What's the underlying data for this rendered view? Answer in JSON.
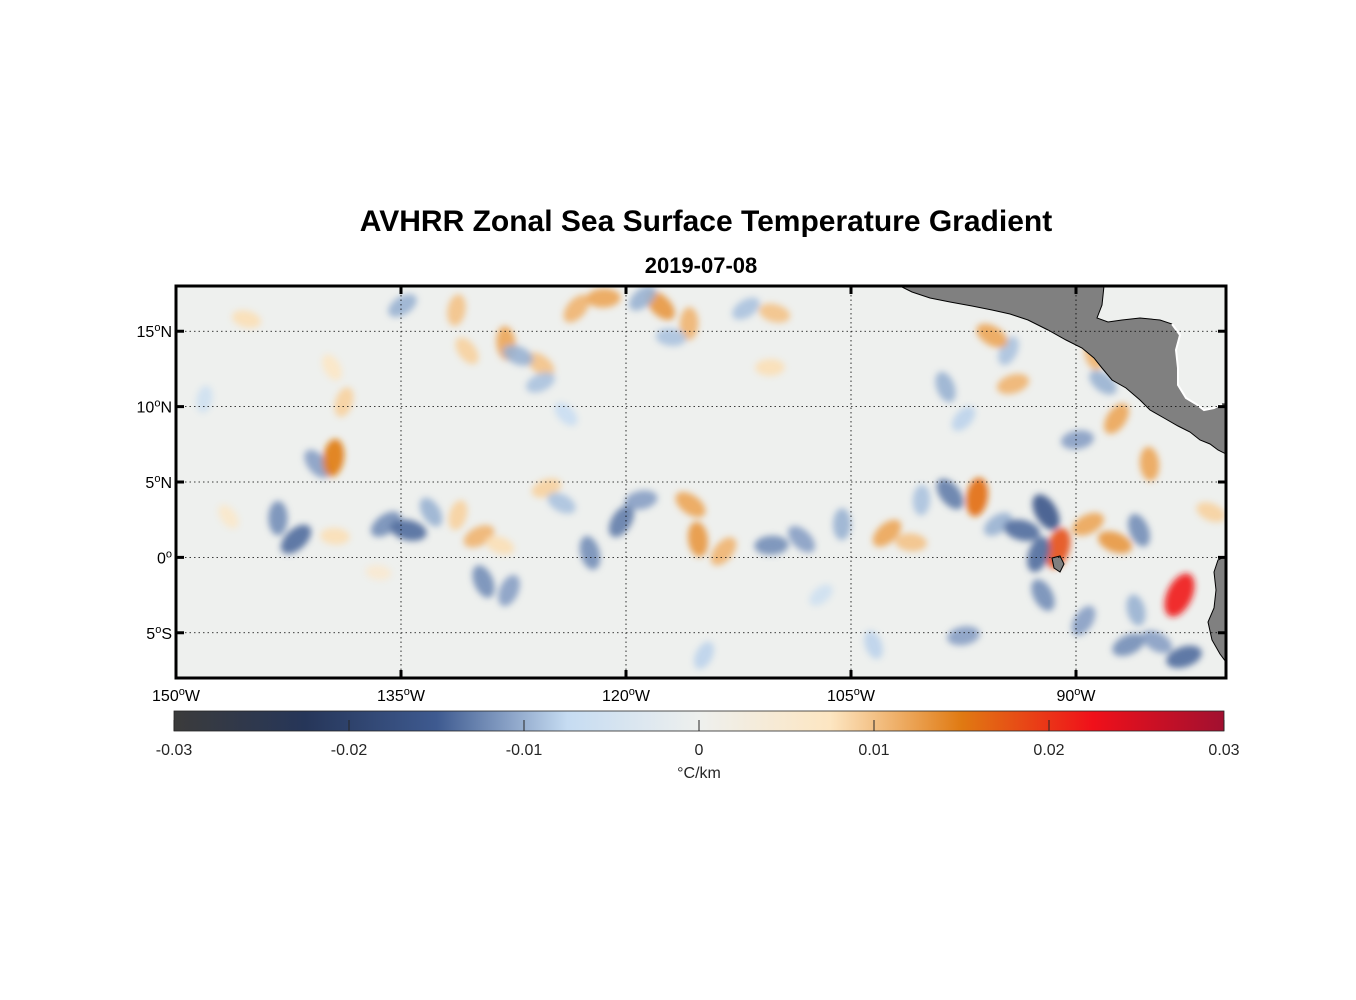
{
  "title": "AVHRR Zonal Sea Surface Temperature Gradient",
  "subtitle": "2019-07-08",
  "map": {
    "lon_range": [
      -150,
      -80
    ],
    "lat_range": [
      -8,
      18
    ],
    "lat_ticks": [
      {
        "value": 15,
        "label": "15",
        "hemi": "N"
      },
      {
        "value": 10,
        "label": "10",
        "hemi": "N"
      },
      {
        "value": 5,
        "label": "5",
        "hemi": "N"
      },
      {
        "value": 0,
        "label": "0",
        "hemi": ""
      },
      {
        "value": -5,
        "label": "5",
        "hemi": "S"
      }
    ],
    "lon_ticks": [
      {
        "value": -150,
        "label": "150",
        "hemi": "W"
      },
      {
        "value": -135,
        "label": "135",
        "hemi": "W"
      },
      {
        "value": -120,
        "label": "120",
        "hemi": "W"
      },
      {
        "value": -105,
        "label": "105",
        "hemi": "W"
      },
      {
        "value": -90,
        "label": "90",
        "hemi": "W"
      }
    ],
    "land_color": "#808080"
  },
  "colorbar": {
    "min": -0.03,
    "max": 0.03,
    "ticks": [
      "-0.03",
      "-0.02",
      "-0.01",
      "0",
      "0.01",
      "0.02",
      "0.03"
    ],
    "tick_values": [
      -0.03,
      -0.02,
      -0.01,
      0,
      0.01,
      0.02,
      0.03
    ],
    "unit_label": "°C/km",
    "colors": [
      "#3b3b3b",
      "#263659",
      "#3e5a90",
      "#c6dcf2",
      "#eef0ee",
      "#fde6c2",
      "#e07a12",
      "#f0101a",
      "#a11030"
    ]
  },
  "features": [
    {
      "lon": -143.2,
      "lat": 2.6,
      "v": -0.012
    },
    {
      "lon": -142,
      "lat": 1.2,
      "v": -0.014
    },
    {
      "lon": -139.4,
      "lat": 1.4,
      "v": 0.008
    },
    {
      "lon": -140.6,
      "lat": 6.2,
      "v": -0.011
    },
    {
      "lon": -139.5,
      "lat": 6.6,
      "v": 0.015
    },
    {
      "lon": -136,
      "lat": 2.2,
      "v": -0.012
    },
    {
      "lon": -134.5,
      "lat": 1.8,
      "v": -0.014
    },
    {
      "lon": -133,
      "lat": 3,
      "v": -0.01
    },
    {
      "lon": -131.2,
      "lat": 2.8,
      "v": 0.009
    },
    {
      "lon": -129.8,
      "lat": 1.4,
      "v": 0.011
    },
    {
      "lon": -128.4,
      "lat": 0.8,
      "v": 0.008
    },
    {
      "lon": -129.5,
      "lat": -1.6,
      "v": -0.012
    },
    {
      "lon": -127.8,
      "lat": -2.2,
      "v": -0.011
    },
    {
      "lon": -125.3,
      "lat": 4.6,
      "v": 0.009
    },
    {
      "lon": -124.3,
      "lat": 3.6,
      "v": -0.009
    },
    {
      "lon": -122.4,
      "lat": 0.3,
      "v": -0.012
    },
    {
      "lon": -120.3,
      "lat": 2.4,
      "v": -0.013
    },
    {
      "lon": -119,
      "lat": 3.8,
      "v": -0.011
    },
    {
      "lon": -115.7,
      "lat": 3.5,
      "v": 0.012
    },
    {
      "lon": -115.2,
      "lat": 1.2,
      "v": 0.013
    },
    {
      "lon": -113.5,
      "lat": 0.4,
      "v": 0.011
    },
    {
      "lon": -110.3,
      "lat": 0.8,
      "v": -0.012
    },
    {
      "lon": -108.3,
      "lat": 1.2,
      "v": -0.011
    },
    {
      "lon": -105.6,
      "lat": 2.2,
      "v": -0.01
    },
    {
      "lon": -102.6,
      "lat": 1.6,
      "v": 0.012
    },
    {
      "lon": -101,
      "lat": 1,
      "v": 0.01
    },
    {
      "lon": -98.4,
      "lat": 4.2,
      "v": -0.013
    },
    {
      "lon": -96.6,
      "lat": 4,
      "v": 0.016
    },
    {
      "lon": -95.2,
      "lat": 2.2,
      "v": -0.01
    },
    {
      "lon": -93.6,
      "lat": 1.8,
      "v": -0.014
    },
    {
      "lon": -92,
      "lat": 3,
      "v": -0.016
    },
    {
      "lon": -91.2,
      "lat": 0.6,
      "v": 0.018
    },
    {
      "lon": -89.2,
      "lat": 2.2,
      "v": 0.012
    },
    {
      "lon": -87.4,
      "lat": 1,
      "v": 0.013
    },
    {
      "lon": -85.8,
      "lat": 1.8,
      "v": -0.012
    },
    {
      "lon": -83.1,
      "lat": -2.5,
      "v": 0.022
    },
    {
      "lon": -82.8,
      "lat": -6.6,
      "v": -0.014
    },
    {
      "lon": -84.6,
      "lat": -5.6,
      "v": -0.011
    },
    {
      "lon": -86,
      "lat": -3.5,
      "v": -0.01
    },
    {
      "lon": -89.5,
      "lat": -4.2,
      "v": -0.011
    },
    {
      "lon": -97.5,
      "lat": -5.2,
      "v": -0.011
    },
    {
      "lon": -125.7,
      "lat": 12.8,
      "v": 0.01
    },
    {
      "lon": -128,
      "lat": 14.2,
      "v": 0.012
    },
    {
      "lon": -123.3,
      "lat": 16.5,
      "v": 0.011
    },
    {
      "lon": -121.5,
      "lat": 17.2,
      "v": 0.012
    },
    {
      "lon": -117.7,
      "lat": 16.7,
      "v": 0.013
    },
    {
      "lon": -115.8,
      "lat": 15.5,
      "v": 0.011
    },
    {
      "lon": -118.9,
      "lat": 17.2,
      "v": -0.01
    },
    {
      "lon": -117,
      "lat": 14.6,
      "v": -0.009
    },
    {
      "lon": -130.6,
      "lat": 13.7,
      "v": 0.009
    },
    {
      "lon": -131.3,
      "lat": 16.4,
      "v": 0.01
    },
    {
      "lon": -134.9,
      "lat": 16.7,
      "v": -0.01
    },
    {
      "lon": -145.3,
      "lat": 15.8,
      "v": 0.008
    },
    {
      "lon": -139.6,
      "lat": 12.6,
      "v": 0.007
    },
    {
      "lon": -138.8,
      "lat": 10.3,
      "v": 0.009
    },
    {
      "lon": -125.7,
      "lat": 11.6,
      "v": -0.009
    },
    {
      "lon": -127.2,
      "lat": 13.4,
      "v": -0.01
    },
    {
      "lon": -98.7,
      "lat": 11.3,
      "v": -0.01
    },
    {
      "lon": -94.5,
      "lat": 13.7,
      "v": -0.009
    },
    {
      "lon": -94.2,
      "lat": 11.5,
      "v": 0.011
    },
    {
      "lon": -95.6,
      "lat": 14.7,
      "v": 0.012
    },
    {
      "lon": -88.8,
      "lat": 13.5,
      "v": 0.011
    },
    {
      "lon": -87.3,
      "lat": 9.2,
      "v": 0.012
    },
    {
      "lon": -89.9,
      "lat": 7.8,
      "v": -0.011
    },
    {
      "lon": -88.2,
      "lat": 11.6,
      "v": -0.01
    },
    {
      "lon": -85.1,
      "lat": 6.2,
      "v": 0.012
    },
    {
      "lon": -97.5,
      "lat": 9.2,
      "v": -0.008
    },
    {
      "lon": -110.4,
      "lat": 12.6,
      "v": 0.008
    },
    {
      "lon": -124,
      "lat": 9.5,
      "v": -0.007
    },
    {
      "lon": -100.3,
      "lat": 3.8,
      "v": -0.009
    },
    {
      "lon": -107,
      "lat": -2.5,
      "v": -0.006
    },
    {
      "lon": -136.5,
      "lat": -1,
      "v": 0.005
    },
    {
      "lon": -146.5,
      "lat": 2.7,
      "v": 0.006
    },
    {
      "lon": -148.1,
      "lat": 10.5,
      "v": -0.006
    },
    {
      "lon": -112,
      "lat": 16.5,
      "v": -0.009
    },
    {
      "lon": -110.1,
      "lat": 16.2,
      "v": 0.01
    },
    {
      "lon": -92.2,
      "lat": -2.5,
      "v": -0.012
    },
    {
      "lon": -92.5,
      "lat": 0.2,
      "v": -0.014
    },
    {
      "lon": -86.5,
      "lat": -5.8,
      "v": -0.012
    },
    {
      "lon": -81,
      "lat": 3,
      "v": 0.009
    },
    {
      "lon": -103.5,
      "lat": -5.8,
      "v": -0.008
    },
    {
      "lon": -114.8,
      "lat": -6.5,
      "v": -0.008
    }
  ]
}
